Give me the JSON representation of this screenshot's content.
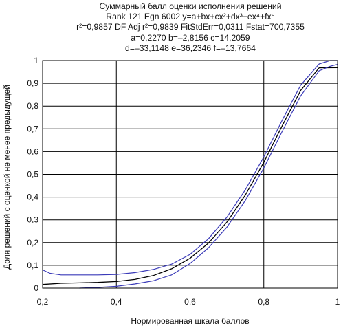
{
  "chart_data": {
    "type": "line",
    "title": "Суммарный балл оценки исполнения решений",
    "subtitle_lines": [
      "Rank 121 Egn 6002 y=a+bx+cx²+dx³+ex⁴+fx⁵",
      "r²=0,9857 DF Adj r²=0,9839 FitStdErr=0,0311 Fstat=700,7355",
      "a=0,2270 b=–2,8156 c=14,2059",
      "d=–33,1148 e=36,2346 f=–13,7664"
    ],
    "xlabel": "Нормированная шкала баллов",
    "ylabel": "Доля решений с оценкой не менее предыдущей",
    "xlim": [
      0.2,
      1.0
    ],
    "ylim": [
      0,
      1.0
    ],
    "x_ticks": [
      "0,2",
      "0,4",
      "0,6",
      "0,8",
      "1"
    ],
    "y_ticks": [
      "0",
      "0,1",
      "0,2",
      "0,3",
      "0,4",
      "0,5",
      "0,6",
      "0,7",
      "0,8",
      "0,9",
      "1"
    ],
    "grid": true,
    "coefficients": {
      "a": 0.227,
      "b": -2.8156,
      "c": 14.2059,
      "d": -33.1148,
      "e": 36.2346,
      "f": -13.7664
    },
    "series": [
      {
        "role": "fit",
        "color": "#000000",
        "x": [
          0.2,
          0.25,
          0.3,
          0.35,
          0.4,
          0.45,
          0.5,
          0.55,
          0.6,
          0.65,
          0.7,
          0.75,
          0.8,
          0.85,
          0.9,
          0.95,
          1.0
        ],
        "y": [
          0.016,
          0.021,
          0.023,
          0.025,
          0.029,
          0.038,
          0.055,
          0.085,
          0.131,
          0.198,
          0.29,
          0.409,
          0.553,
          0.714,
          0.869,
          0.968,
          0.969
        ]
      },
      {
        "role": "upper confidence band",
        "color": "#3a3ab8",
        "x": [
          0.2,
          0.22,
          0.25,
          0.3,
          0.35,
          0.4,
          0.45,
          0.5,
          0.55,
          0.6,
          0.65,
          0.7,
          0.75,
          0.8,
          0.85,
          0.9,
          0.95,
          0.98,
          1.0
        ],
        "y": [
          0.08,
          0.065,
          0.058,
          0.058,
          0.058,
          0.06,
          0.068,
          0.082,
          0.105,
          0.148,
          0.217,
          0.312,
          0.432,
          0.577,
          0.738,
          0.892,
          0.985,
          1.0,
          1.0
        ]
      },
      {
        "role": "lower confidence band",
        "color": "#3a3ab8",
        "x": [
          0.3,
          0.35,
          0.4,
          0.45,
          0.5,
          0.55,
          0.6,
          0.65,
          0.7,
          0.75,
          0.8,
          0.85,
          0.9,
          0.95,
          0.98,
          1.0
        ],
        "y": [
          0.0,
          0.003,
          0.008,
          0.018,
          0.032,
          0.058,
          0.108,
          0.177,
          0.268,
          0.385,
          0.528,
          0.689,
          0.845,
          0.955,
          0.975,
          0.983
        ]
      }
    ]
  }
}
